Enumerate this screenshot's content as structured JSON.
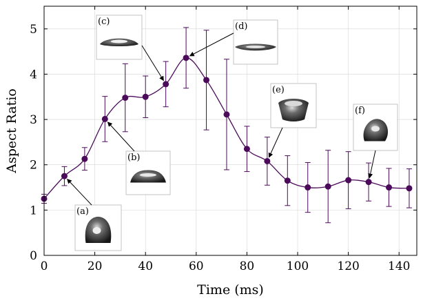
{
  "chart_data": {
    "type": "line",
    "xlabel": "Time (ms)",
    "ylabel": "Aspect Ratio",
    "xlim": [
      0,
      147
    ],
    "ylim": [
      0,
      5.5
    ],
    "xticks": [
      0,
      20,
      40,
      60,
      80,
      100,
      120,
      140
    ],
    "yticks": [
      0,
      1,
      2,
      3,
      4,
      5
    ],
    "line_color": "#4b0a5a",
    "series": [
      {
        "x": [
          0,
          8,
          16,
          24,
          32,
          40,
          48,
          56,
          64,
          72,
          80,
          88,
          96,
          104,
          112,
          120,
          128,
          136,
          144
        ],
        "y": [
          1.25,
          1.75,
          2.13,
          3.01,
          3.48,
          3.5,
          3.78,
          4.36,
          3.87,
          3.11,
          2.35,
          2.08,
          1.65,
          1.5,
          1.52,
          1.66,
          1.62,
          1.5,
          1.48
        ],
        "error": [
          0.1,
          0.21,
          0.25,
          0.5,
          0.75,
          0.46,
          0.5,
          0.67,
          1.1,
          1.22,
          0.5,
          0.53,
          0.55,
          0.55,
          0.8,
          0.63,
          0.42,
          0.42,
          0.43
        ]
      }
    ],
    "annotations": [
      {
        "label": "(a)",
        "point_x": 8,
        "point_y": 1.75,
        "shape": "dome"
      },
      {
        "label": "(b)",
        "point_x": 24,
        "point_y": 3.01,
        "shape": "flat-dome"
      },
      {
        "label": "(c)",
        "point_x": 48,
        "point_y": 3.78,
        "shape": "lens"
      },
      {
        "label": "(d)",
        "point_x": 56,
        "point_y": 4.36,
        "shape": "flat-lens"
      },
      {
        "label": "(e)",
        "point_x": 88,
        "point_y": 2.08,
        "shape": "cup"
      },
      {
        "label": "(f)",
        "point_x": 128,
        "point_y": 1.62,
        "shape": "tilted"
      }
    ]
  }
}
